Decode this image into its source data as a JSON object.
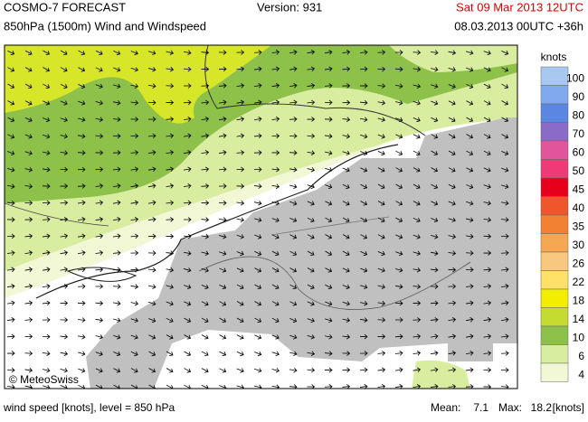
{
  "header": {
    "title": "COSMO-7 FORECAST",
    "subtitle": "850hPa (1500m) Wind and Windspeed",
    "version": "Version: 931",
    "valid_time": "Sat 09 Mar 2013 12UTC",
    "run": "08.03.2013 00UTC +36h"
  },
  "legend": {
    "title": "knots",
    "items": [
      {
        "label": 100,
        "color": "#a9c8f0"
      },
      {
        "label": 90,
        "color": "#80a9ee"
      },
      {
        "label": 80,
        "color": "#5b86e2"
      },
      {
        "label": 70,
        "color": "#8a6cc6"
      },
      {
        "label": 60,
        "color": "#e2559c"
      },
      {
        "label": 50,
        "color": "#ee3b77"
      },
      {
        "label": 45,
        "color": "#e6001b"
      },
      {
        "label": 40,
        "color": "#f0552b"
      },
      {
        "label": 35,
        "color": "#f28131"
      },
      {
        "label": 30,
        "color": "#f5a851"
      },
      {
        "label": 26,
        "color": "#f8c880"
      },
      {
        "label": 22,
        "color": "#fde168"
      },
      {
        "label": 18,
        "color": "#f3ee00"
      },
      {
        "label": 14,
        "color": "#c6db30"
      },
      {
        "label": 10,
        "color": "#8ec14a"
      },
      {
        "label": 6,
        "color": "#d9eda0"
      },
      {
        "label": 4,
        "color": "#f2f8d6"
      }
    ]
  },
  "watermark": "© MeteoSwiss",
  "footer": {
    "caption": "wind speed [knots], level = 850 hPa",
    "mean_label": "Mean:",
    "mean": 7.1,
    "max_label": "Max:",
    "max": 18.2,
    "unit": "[knots]"
  }
}
